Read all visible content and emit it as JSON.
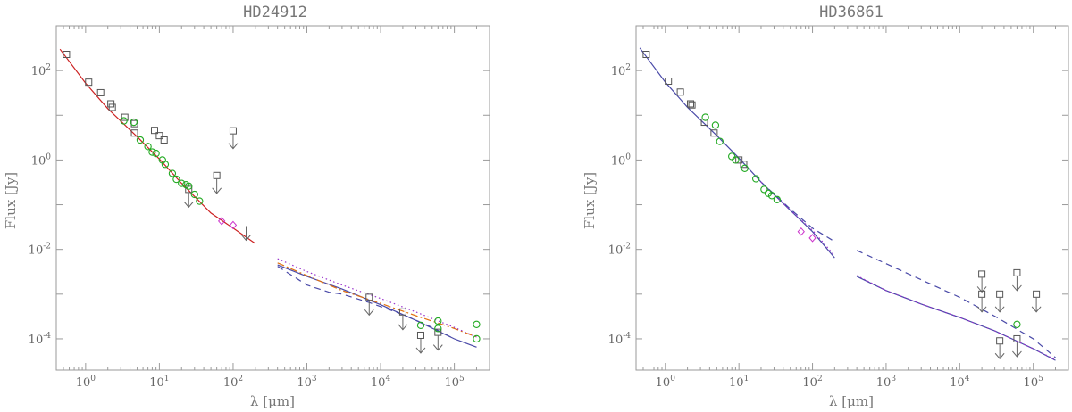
{
  "chart_data": [
    {
      "type": "scatter",
      "title": "HD24912",
      "xlabel": "λ [μm]",
      "ylabel": "Flux [Jy]",
      "xscale": "log",
      "yscale": "log",
      "xlim": [
        0.4,
        300000
      ],
      "ylim": [
        2e-05,
        1000
      ],
      "x_ticks": [
        {
          "base": "10",
          "exp": "0",
          "value": 1
        },
        {
          "base": "10",
          "exp": "1",
          "value": 10
        },
        {
          "base": "10",
          "exp": "2",
          "value": 100
        },
        {
          "base": "10",
          "exp": "3",
          "value": 1000
        },
        {
          "base": "10",
          "exp": "4",
          "value": 10000
        },
        {
          "base": "10",
          "exp": "5",
          "value": 100000
        }
      ],
      "y_ticks": [
        {
          "base": "10",
          "exp": "-4",
          "value": 0.0001
        },
        {
          "base": "10",
          "exp": "-2",
          "value": 0.01
        },
        {
          "base": "10",
          "exp": "0",
          "value": 1
        },
        {
          "base": "10",
          "exp": "2",
          "value": 100
        }
      ],
      "grid": false,
      "legend": "none",
      "series": [
        {
          "style": "solid",
          "color": "#cc2222",
          "x": [
            0.45,
            1,
            2,
            5,
            10,
            20,
            50,
            100,
            200
          ],
          "y": [
            300,
            52,
            14,
            3.3,
            1.05,
            0.3,
            0.065,
            0.03,
            0.0135
          ]
        },
        {
          "style": "solid",
          "color": "#4a4aa8",
          "x": [
            400,
            1000,
            3000,
            10000,
            30000,
            100000,
            200000
          ],
          "y": [
            0.0045,
            0.0025,
            0.0013,
            0.00058,
            0.00026,
            0.0001,
            6.5e-05
          ]
        },
        {
          "style": "dashed",
          "color": "#4a4aa8",
          "x": [
            400,
            1000,
            2000,
            3000,
            7000,
            20000,
            50000,
            100000
          ],
          "y": [
            0.0042,
            0.0016,
            0.0011,
            0.001,
            0.00065,
            0.00035,
            0.00018,
            0.0001
          ]
        },
        {
          "style": "dashdot",
          "color": "#e07010",
          "x": [
            400,
            1000,
            3000,
            10000,
            30000,
            100000,
            200000
          ],
          "y": [
            0.005,
            0.0026,
            0.0012,
            0.00062,
            0.00033,
            0.00017,
            0.00011
          ]
        },
        {
          "style": "dotted",
          "color": "#9932cc",
          "x": [
            400,
            1000,
            3000,
            10000,
            30000,
            100000,
            200000
          ],
          "y": [
            0.0062,
            0.0032,
            0.0016,
            0.0008,
            0.0004,
            0.00018,
            0.00011
          ]
        }
      ],
      "points": [
        {
          "x": 0.55,
          "y": 230,
          "marker": "square",
          "color": "#555555"
        },
        {
          "x": 1.1,
          "y": 55,
          "marker": "square",
          "color": "#555555"
        },
        {
          "x": 1.6,
          "y": 32,
          "marker": "square",
          "color": "#555555"
        },
        {
          "x": 2.2,
          "y": 18,
          "marker": "square",
          "color": "#555555"
        },
        {
          "x": 2.3,
          "y": 15,
          "marker": "square",
          "color": "#555555"
        },
        {
          "x": 3.4,
          "y": 9,
          "marker": "square",
          "color": "#555555"
        },
        {
          "x": 4.6,
          "y": 6.5,
          "marker": "square",
          "color": "#555555"
        },
        {
          "x": 4.6,
          "y": 4,
          "marker": "square",
          "color": "#555555"
        },
        {
          "x": 8.6,
          "y": 4.6,
          "marker": "square",
          "color": "#555555"
        },
        {
          "x": 10,
          "y": 3.5,
          "marker": "square",
          "color": "#555555"
        },
        {
          "x": 11.6,
          "y": 2.8,
          "marker": "square",
          "color": "#555555"
        },
        {
          "x": 25,
          "y": 0.22,
          "marker": "square",
          "color": "#555555"
        },
        {
          "x": 60,
          "y": 0.45,
          "marker": "square",
          "color": "#555555"
        },
        {
          "x": 100,
          "y": 4.5,
          "marker": "square",
          "color": "#555555"
        },
        {
          "x": 3.3,
          "y": 7.5,
          "marker": "circle",
          "color": "#22aa22"
        },
        {
          "x": 4.5,
          "y": 7,
          "marker": "circle",
          "color": "#22aa22"
        },
        {
          "x": 5.5,
          "y": 2.8,
          "marker": "circle",
          "color": "#22aa22"
        },
        {
          "x": 7,
          "y": 2,
          "marker": "circle",
          "color": "#22aa22"
        },
        {
          "x": 8,
          "y": 1.5,
          "marker": "circle",
          "color": "#22aa22"
        },
        {
          "x": 9,
          "y": 1.4,
          "marker": "circle",
          "color": "#22aa22"
        },
        {
          "x": 11,
          "y": 1,
          "marker": "circle",
          "color": "#22aa22"
        },
        {
          "x": 12,
          "y": 0.8,
          "marker": "circle",
          "color": "#22aa22"
        },
        {
          "x": 15,
          "y": 0.5,
          "marker": "circle",
          "color": "#22aa22"
        },
        {
          "x": 17,
          "y": 0.37,
          "marker": "circle",
          "color": "#22aa22"
        },
        {
          "x": 20,
          "y": 0.3,
          "marker": "circle",
          "color": "#22aa22"
        },
        {
          "x": 23,
          "y": 0.28,
          "marker": "circle",
          "color": "#22aa22"
        },
        {
          "x": 25,
          "y": 0.26,
          "marker": "circle",
          "color": "#22aa22"
        },
        {
          "x": 30,
          "y": 0.17,
          "marker": "circle",
          "color": "#22aa22"
        },
        {
          "x": 35,
          "y": 0.12,
          "marker": "circle",
          "color": "#22aa22"
        },
        {
          "x": 70,
          "y": 0.043,
          "marker": "diamond",
          "color": "#cc33cc"
        },
        {
          "x": 100,
          "y": 0.035,
          "marker": "diamond",
          "color": "#cc33cc"
        },
        {
          "x": 7000,
          "y": 0.00085,
          "marker": "square",
          "color": "#555555"
        },
        {
          "x": 20000,
          "y": 0.0004,
          "marker": "square",
          "color": "#555555"
        },
        {
          "x": 35000,
          "y": 0.00012,
          "marker": "square",
          "color": "#555555"
        },
        {
          "x": 60000,
          "y": 0.00014,
          "marker": "square",
          "color": "#555555"
        },
        {
          "x": 35000,
          "y": 0.0002,
          "marker": "circle",
          "color": "#22aa22"
        },
        {
          "x": 60000,
          "y": 0.00025,
          "marker": "circle",
          "color": "#22aa22"
        },
        {
          "x": 60000,
          "y": 0.00017,
          "marker": "circle",
          "color": "#22aa22"
        },
        {
          "x": 200000,
          "y": 0.00021,
          "marker": "circle",
          "color": "#22aa22"
        },
        {
          "x": 200000,
          "y": 0.0001,
          "marker": "circle",
          "color": "#22aa22"
        }
      ],
      "upper_limits": [
        {
          "x": 25,
          "y": 0.22
        },
        {
          "x": 60,
          "y": 0.45
        },
        {
          "x": 100,
          "y": 4.5
        },
        {
          "x": 7000,
          "y": 0.00085
        },
        {
          "x": 20000,
          "y": 0.0004
        },
        {
          "x": 35000,
          "y": 0.00012
        },
        {
          "x": 60000,
          "y": 0.00014
        },
        {
          "x": 150,
          "y": 0.04
        }
      ]
    },
    {
      "type": "scatter",
      "title": "HD36861",
      "xlabel": "λ [μm]",
      "ylabel": "Flux [Jy]",
      "xscale": "log",
      "yscale": "log",
      "xlim": [
        0.4,
        300000
      ],
      "ylim": [
        2e-05,
        1000
      ],
      "x_ticks": [
        {
          "base": "10",
          "exp": "0",
          "value": 1
        },
        {
          "base": "10",
          "exp": "1",
          "value": 10
        },
        {
          "base": "10",
          "exp": "2",
          "value": 100
        },
        {
          "base": "10",
          "exp": "3",
          "value": 1000
        },
        {
          "base": "10",
          "exp": "4",
          "value": 10000
        },
        {
          "base": "10",
          "exp": "5",
          "value": 100000
        }
      ],
      "y_ticks": [
        {
          "base": "10",
          "exp": "-4",
          "value": 0.0001
        },
        {
          "base": "10",
          "exp": "-2",
          "value": 0.01
        },
        {
          "base": "10",
          "exp": "0",
          "value": 1
        },
        {
          "base": "10",
          "exp": "2",
          "value": 100
        }
      ],
      "grid": false,
      "legend": "none",
      "series": [
        {
          "style": "solid",
          "color": "#4a4aa8",
          "x": [
            0.45,
            1,
            2,
            5,
            10,
            20,
            50,
            100,
            200
          ],
          "y": [
            320,
            55,
            15,
            3.5,
            1.1,
            0.32,
            0.075,
            0.025,
            0.0065
          ]
        },
        {
          "style": "dashed",
          "color": "#4a4aa8",
          "x": [
            20,
            50,
            100,
            200
          ],
          "y": [
            0.32,
            0.08,
            0.03,
            0.015
          ]
        },
        {
          "style": "dotted",
          "color": "#9932cc",
          "x": [
            20,
            50,
            100,
            200
          ],
          "y": [
            0.32,
            0.075,
            0.027,
            0.0072
          ]
        },
        {
          "style": "solid",
          "color": "#4a4aa8",
          "x": [
            400,
            1000,
            3000,
            10000,
            30000,
            100000,
            200000
          ],
          "y": [
            0.0025,
            0.0012,
            0.0006,
            0.0003,
            0.00015,
            6e-05,
            3.3e-05
          ]
        },
        {
          "style": "dotted",
          "color": "#9932cc",
          "x": [
            400,
            1000,
            3000,
            10000,
            30000,
            100000,
            200000
          ],
          "y": [
            0.0026,
            0.0012,
            0.0006,
            0.0003,
            0.00015,
            6e-05,
            3.4e-05
          ]
        },
        {
          "style": "dashed",
          "color": "#4a4aa8",
          "x": [
            400,
            1000,
            3000,
            10000,
            30000,
            100000,
            200000
          ],
          "y": [
            0.0095,
            0.0048,
            0.0021,
            0.00085,
            0.00032,
            0.0001,
            3.8e-05
          ]
        }
      ],
      "points": [
        {
          "x": 0.55,
          "y": 230,
          "marker": "square",
          "color": "#555555"
        },
        {
          "x": 1.1,
          "y": 58,
          "marker": "square",
          "color": "#555555"
        },
        {
          "x": 1.6,
          "y": 33,
          "marker": "square",
          "color": "#555555"
        },
        {
          "x": 2.2,
          "y": 18,
          "marker": "square",
          "color": "#555555"
        },
        {
          "x": 2.3,
          "y": 17,
          "marker": "square",
          "color": "#555555"
        },
        {
          "x": 3.4,
          "y": 7,
          "marker": "square",
          "color": "#555555"
        },
        {
          "x": 4.6,
          "y": 4,
          "marker": "square",
          "color": "#555555"
        },
        {
          "x": 10,
          "y": 1,
          "marker": "square",
          "color": "#555555"
        },
        {
          "x": 11.6,
          "y": 0.8,
          "marker": "square",
          "color": "#555555"
        },
        {
          "x": 35000,
          "y": 9e-05,
          "marker": "square",
          "color": "#555555"
        },
        {
          "x": 20000,
          "y": 0.0028,
          "marker": "square",
          "color": "#555555"
        },
        {
          "x": 20000,
          "y": 0.001,
          "marker": "square",
          "color": "#555555"
        },
        {
          "x": 60000,
          "y": 0.003,
          "marker": "square",
          "color": "#555555"
        },
        {
          "x": 35000,
          "y": 0.001,
          "marker": "square",
          "color": "#555555"
        },
        {
          "x": 110000,
          "y": 0.001,
          "marker": "square",
          "color": "#555555"
        },
        {
          "x": 60000,
          "y": 0.0001,
          "marker": "square",
          "color": "#555555"
        },
        {
          "x": 3.5,
          "y": 9,
          "marker": "circle",
          "color": "#22aa22"
        },
        {
          "x": 4.8,
          "y": 6,
          "marker": "circle",
          "color": "#22aa22"
        },
        {
          "x": 5.5,
          "y": 2.6,
          "marker": "circle",
          "color": "#22aa22"
        },
        {
          "x": 8,
          "y": 1.2,
          "marker": "circle",
          "color": "#22aa22"
        },
        {
          "x": 9,
          "y": 1,
          "marker": "circle",
          "color": "#22aa22"
        },
        {
          "x": 12,
          "y": 0.65,
          "marker": "circle",
          "color": "#22aa22"
        },
        {
          "x": 17,
          "y": 0.38,
          "marker": "circle",
          "color": "#22aa22"
        },
        {
          "x": 22,
          "y": 0.22,
          "marker": "circle",
          "color": "#22aa22"
        },
        {
          "x": 25,
          "y": 0.18,
          "marker": "circle",
          "color": "#22aa22"
        },
        {
          "x": 28,
          "y": 0.16,
          "marker": "circle",
          "color": "#22aa22"
        },
        {
          "x": 33,
          "y": 0.13,
          "marker": "circle",
          "color": "#22aa22"
        },
        {
          "x": 60000,
          "y": 0.00021,
          "marker": "circle",
          "color": "#22aa22"
        },
        {
          "x": 70,
          "y": 0.025,
          "marker": "diamond",
          "color": "#cc33cc"
        },
        {
          "x": 100,
          "y": 0.018,
          "marker": "diamond",
          "color": "#cc33cc"
        }
      ],
      "upper_limits": [
        {
          "x": 20000,
          "y": 0.0028
        },
        {
          "x": 20000,
          "y": 0.001
        },
        {
          "x": 35000,
          "y": 0.001
        },
        {
          "x": 60000,
          "y": 0.003
        },
        {
          "x": 110000,
          "y": 0.001
        },
        {
          "x": 35000,
          "y": 9e-05
        },
        {
          "x": 60000,
          "y": 0.0001
        }
      ]
    }
  ]
}
